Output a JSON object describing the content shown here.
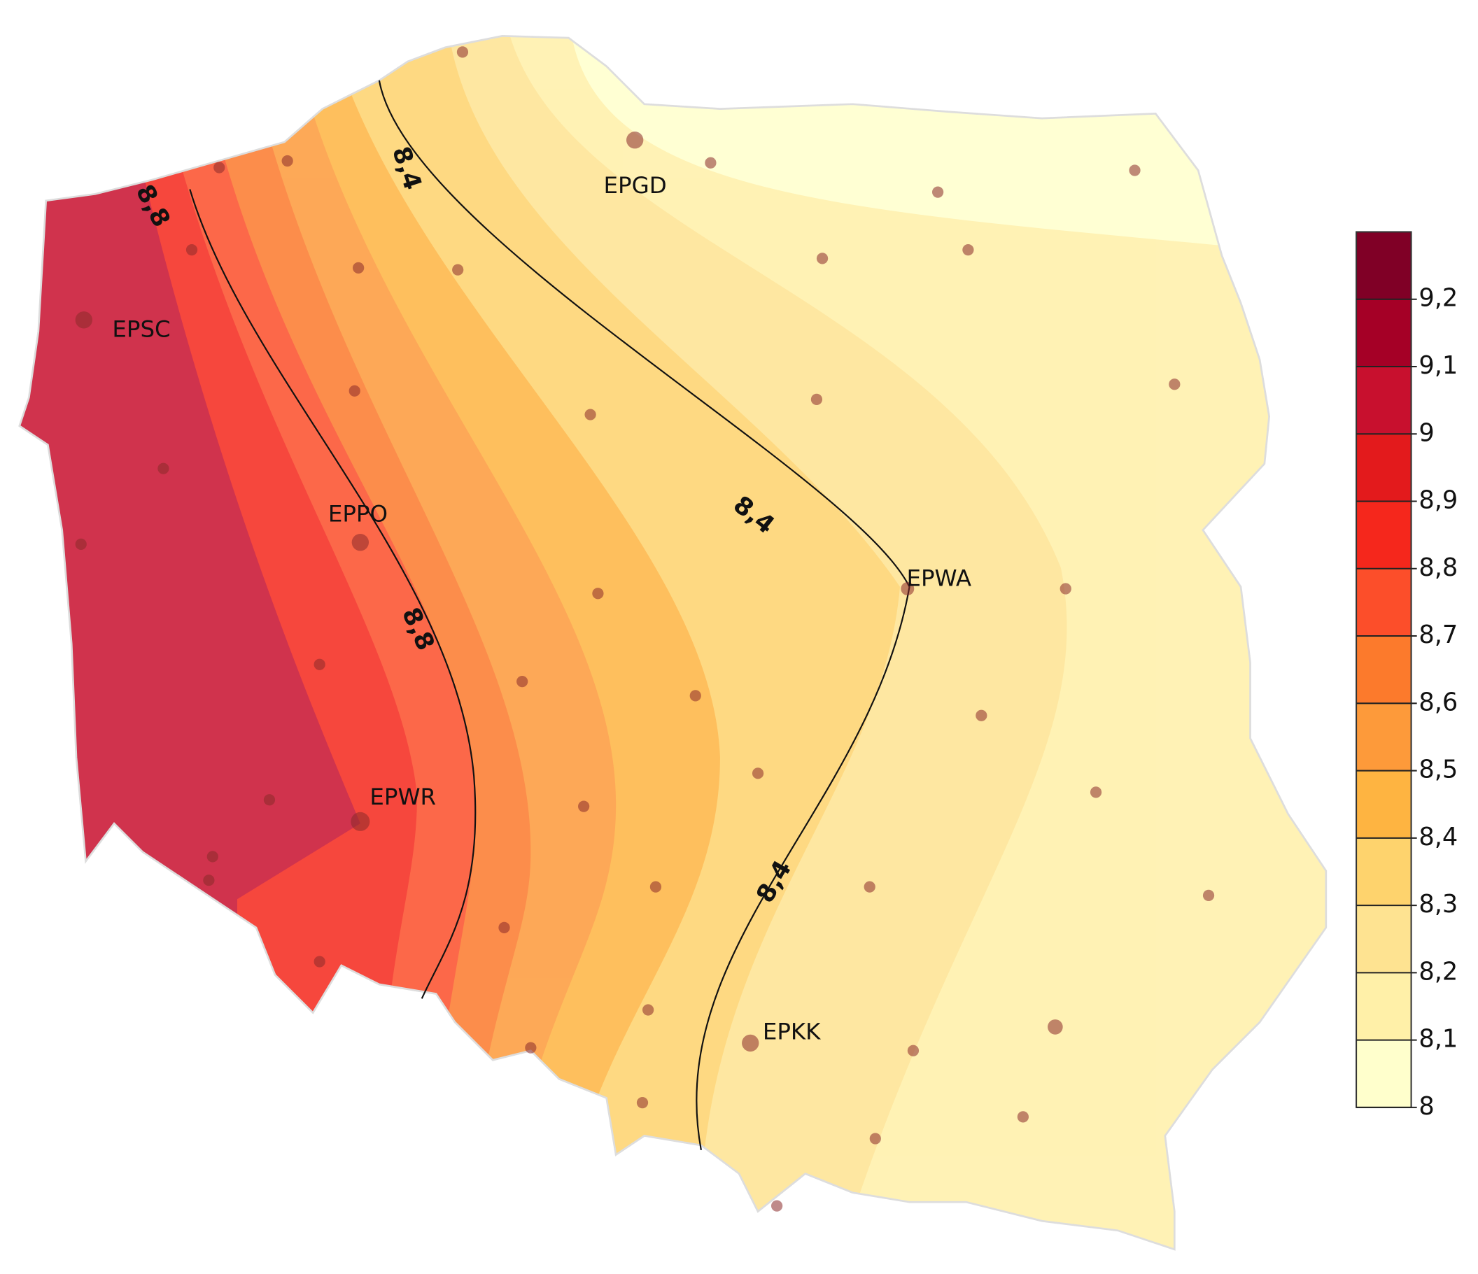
{
  "stations": [
    {
      "label": "EPGD"
    },
    {
      "label": "EPSC"
    },
    {
      "label": "EPPO"
    },
    {
      "label": "EPWA"
    },
    {
      "label": "EPWR"
    },
    {
      "label": "EPKK"
    }
  ],
  "contour_labels": [
    {
      "label": "8,8"
    },
    {
      "label": "8,4"
    },
    {
      "label": "8,4"
    },
    {
      "label": "8,8"
    },
    {
      "label": "8,4"
    }
  ],
  "legend": {
    "range": [
      8,
      9.3
    ],
    "ticks": [
      8,
      {
        "value": 8.1,
        "label": "8,1"
      },
      {
        "value": 8.2,
        "label": "8,2"
      },
      {
        "value": 8.3,
        "label": "8,3"
      },
      {
        "value": 8.4,
        "label": "8,4"
      },
      {
        "value": 8.5,
        "label": "8,5"
      },
      {
        "value": 8.6,
        "label": "8,6"
      },
      {
        "value": 8.7,
        "label": "8,7"
      },
      {
        "value": 8.8,
        "label": "8,8"
      },
      {
        "value": 8.9,
        "label": "8,9"
      },
      9,
      {
        "value": 9.1,
        "label": "9,1"
      },
      {
        "value": 9.2,
        "label": "9,2"
      }
    ],
    "colors": [
      "#ffffcc",
      "#fff0a8",
      "#fee391",
      "#fed36d",
      "#feb441",
      "#fd9a3a",
      "#fc7a2c",
      "#fc4e2a",
      "#f5271c",
      "#e31a1c",
      "#c8102e",
      "#a50026",
      "#800026"
    ]
  }
}
